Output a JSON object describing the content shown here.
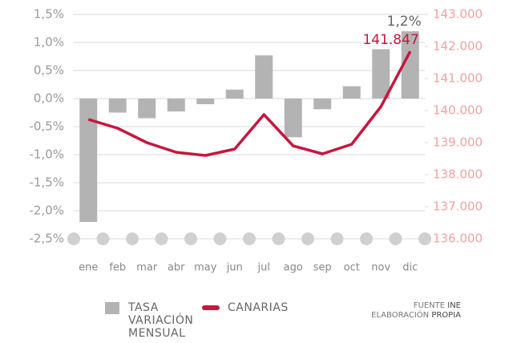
{
  "chart_data": {
    "type": "bar_line",
    "categories": [
      "ene",
      "feb",
      "mar",
      "abr",
      "may",
      "jun",
      "jul",
      "ago",
      "sep",
      "oct",
      "nov",
      "dic"
    ],
    "series": [
      {
        "name": "TASA VARIACIÓN MENSUAL",
        "type": "bar",
        "color": "#b3b3b3",
        "values": [
          -2.2,
          -0.25,
          -0.35,
          -0.23,
          -0.1,
          0.16,
          0.77,
          -0.69,
          -0.19,
          0.22,
          0.88,
          1.2
        ],
        "value_labels": [
          null,
          null,
          null,
          null,
          null,
          null,
          null,
          null,
          null,
          null,
          null,
          "1,2%"
        ]
      },
      {
        "name": "CANARIAS",
        "type": "line",
        "axis": "y2",
        "color": "#c8163e",
        "values": [
          139725,
          139450,
          139000,
          138700,
          138600,
          138800,
          139875,
          138900,
          138650,
          138950,
          140125,
          141847
        ],
        "value_labels": [
          null,
          null,
          null,
          null,
          null,
          null,
          null,
          null,
          null,
          null,
          null,
          "141.847"
        ]
      }
    ],
    "ylim": [
      -2.5,
      1.5
    ],
    "yticks": [
      {
        "value": -2.5,
        "label": "-2,5%"
      },
      {
        "value": -2,
        "label": "-2,0%"
      },
      {
        "value": -1.5,
        "label": "-1,5%"
      },
      {
        "value": -1,
        "label": "-1,0%"
      },
      {
        "value": -0.5,
        "label": "-0,5%"
      },
      {
        "value": 0,
        "label": "0,0%"
      },
      {
        "value": 0.5,
        "label": "0,5%"
      },
      {
        "value": 1,
        "label": "1,0%"
      },
      {
        "value": 1.5,
        "label": "1,5%"
      }
    ],
    "y2lim": [
      136000,
      143000
    ],
    "y2ticks": [
      {
        "value": 136000,
        "label": "136.000"
      },
      {
        "value": 137000,
        "label": "137.000"
      },
      {
        "value": 138000,
        "label": "138.000"
      },
      {
        "value": 139000,
        "label": "139.000"
      },
      {
        "value": 140000,
        "label": "140.000"
      },
      {
        "value": 141000,
        "label": "141.000"
      },
      {
        "value": 142000,
        "label": "142.000"
      },
      {
        "value": 143000,
        "label": "143.000"
      }
    ],
    "grid": true,
    "source_label": "FUENTE",
    "source": "INE",
    "credit_label": "ELABORACIÓN",
    "credit": "PROPIA"
  }
}
